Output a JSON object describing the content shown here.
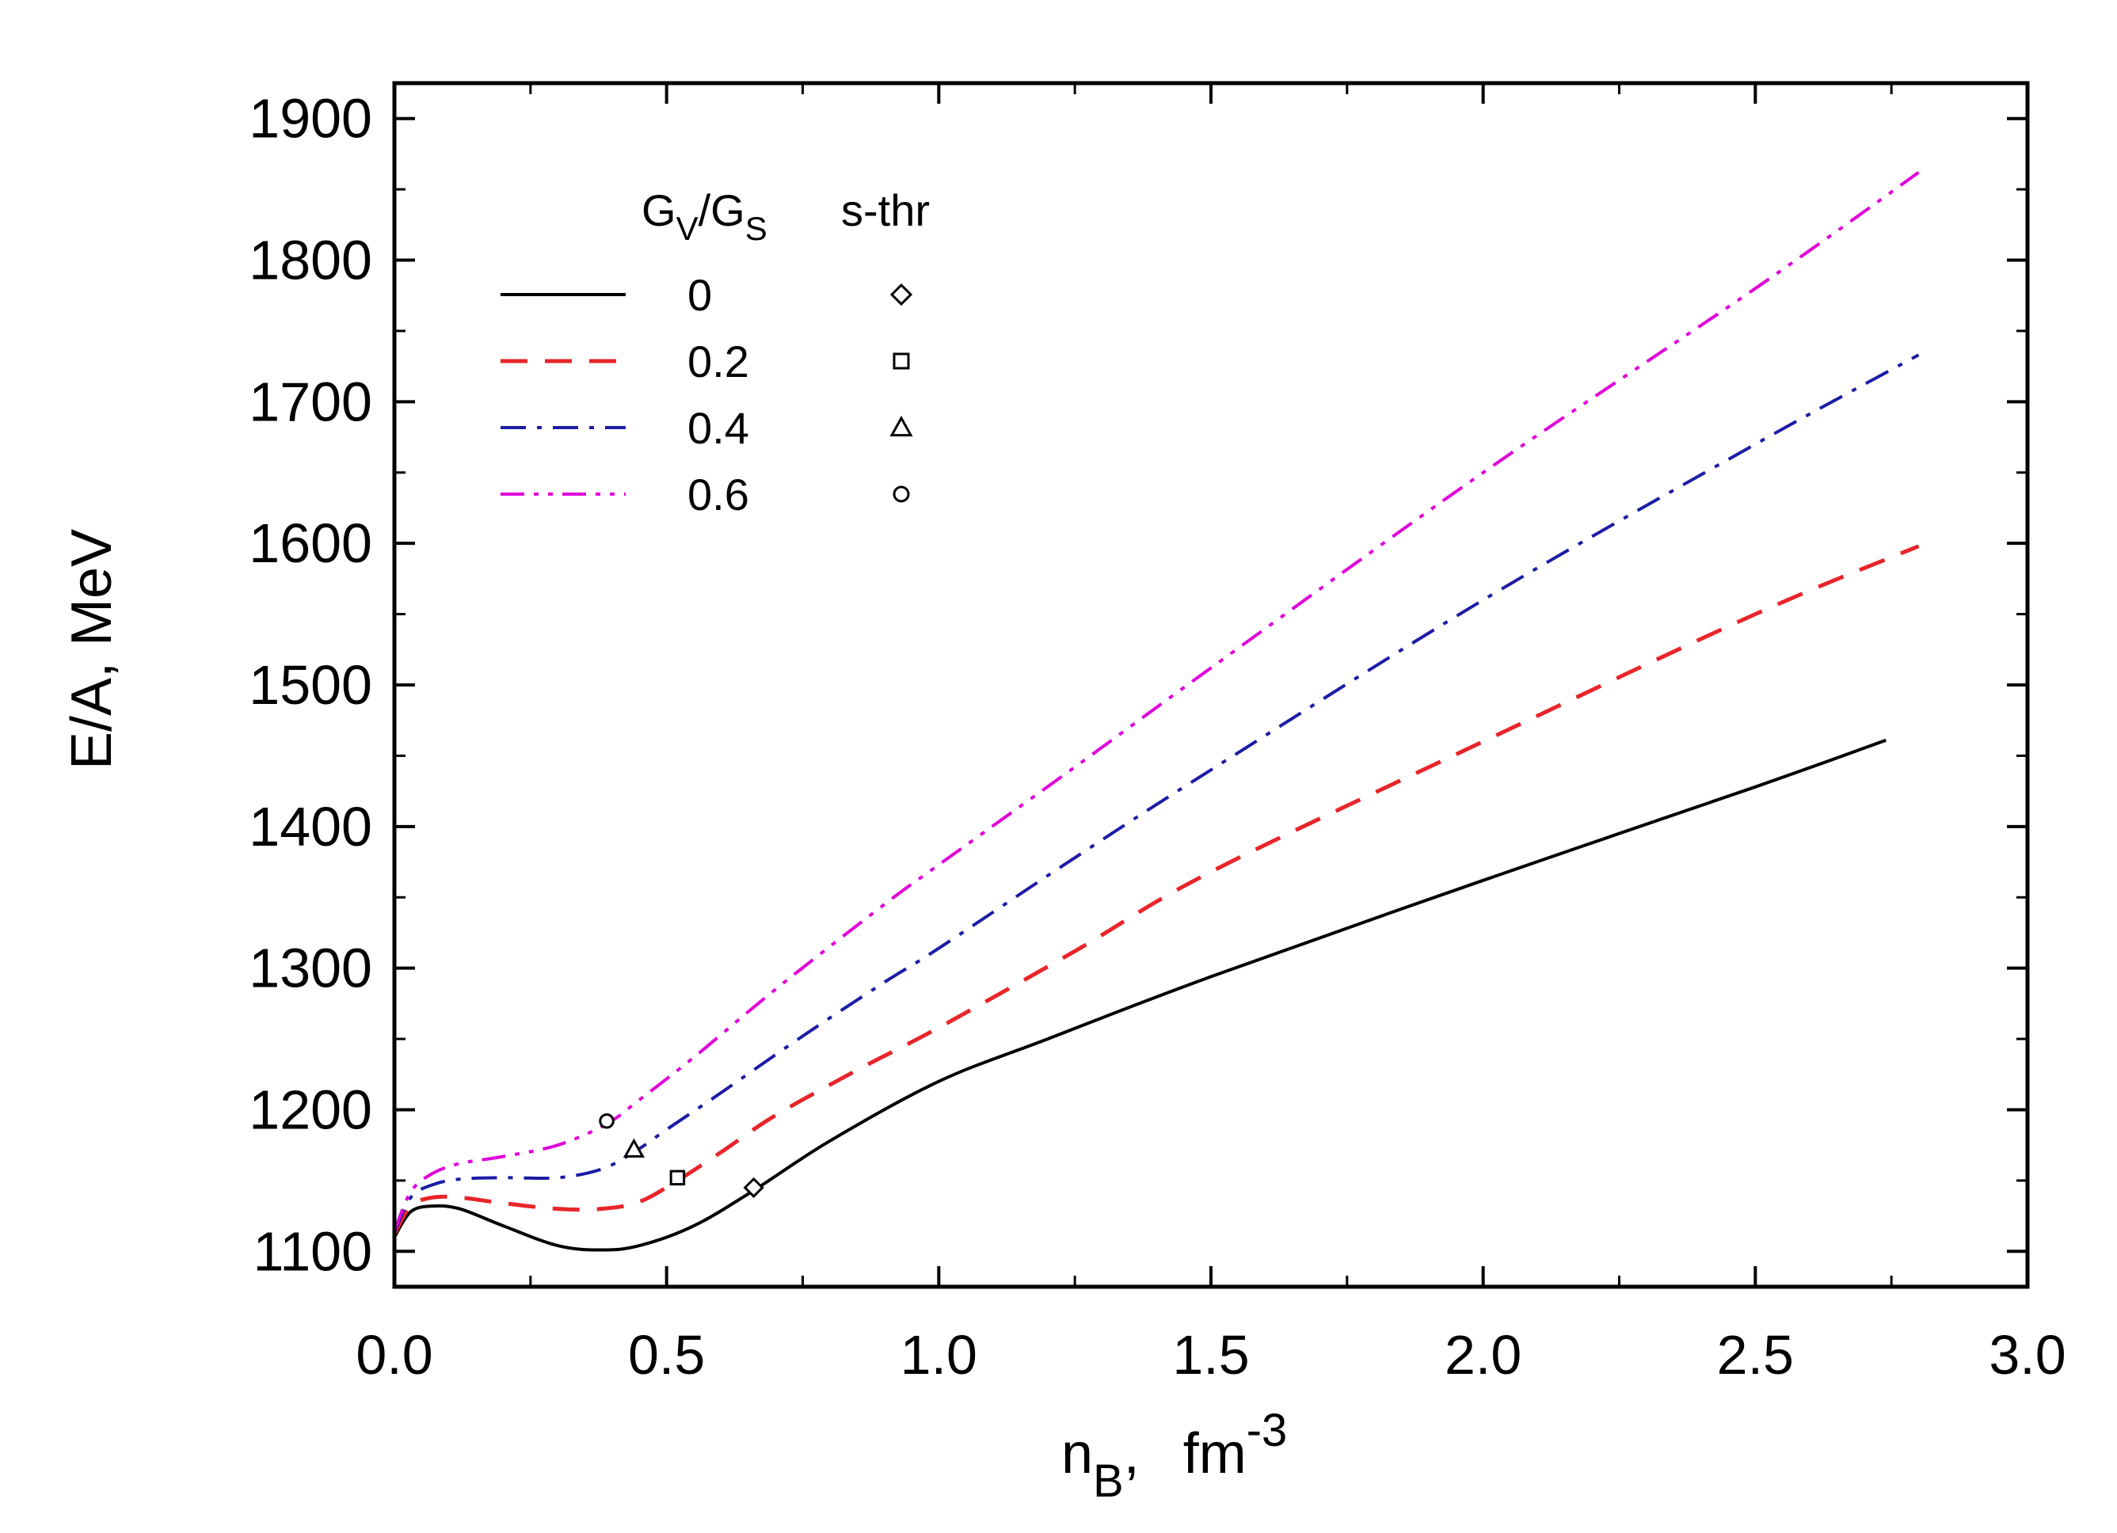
{
  "chart_data": {
    "type": "line",
    "title": "",
    "xlabel": {
      "main": "n",
      "sub": "B",
      "sep": ",",
      "unit": "fm",
      "sup": "-3"
    },
    "ylabel": "E/A,   MeV",
    "xlim": [
      0.0,
      3.0
    ],
    "ylim": [
      1075,
      1925
    ],
    "xticks": [
      "0.0",
      "0.5",
      "1.0",
      "1.5",
      "2.0",
      "2.5",
      "3.0"
    ],
    "yticks": [
      "1100",
      "1200",
      "1300",
      "1400",
      "1500",
      "1600",
      "1700",
      "1800",
      "1900"
    ],
    "legend": {
      "position": "top-left",
      "header_ratio": {
        "g1": "G",
        "s1": "V",
        "slash": "/",
        "g2": "G",
        "s2": "S"
      },
      "header_threshold": "s-thr"
    },
    "series": [
      {
        "name": "0",
        "color": "#000000",
        "dash": "solid",
        "marker": "diamond",
        "threshold": [
          0.66,
          1145
        ],
        "x": [
          0.0,
          0.03,
          0.07,
          0.12,
          0.2,
          0.3,
          0.38,
          0.45,
          0.55,
          0.66,
          0.8,
          1.0,
          1.2,
          1.5,
          2.0,
          2.5,
          2.74
        ],
        "y": [
          1110,
          1128,
          1132,
          1130,
          1118,
          1104,
          1101,
          1104,
          1118,
          1143,
          1178,
          1220,
          1250,
          1294,
          1362,
          1428,
          1461
        ]
      },
      {
        "name": "0.2",
        "color": "#e8252a",
        "dash": "dashed",
        "marker": "square",
        "threshold": [
          0.52,
          1152
        ],
        "x": [
          0.0,
          0.03,
          0.07,
          0.12,
          0.2,
          0.3,
          0.38,
          0.45,
          0.52,
          0.6,
          0.7,
          0.85,
          1.0,
          1.25,
          1.5,
          2.0,
          2.5,
          2.8
        ],
        "y": [
          1112,
          1132,
          1138,
          1138,
          1134,
          1130,
          1130,
          1135,
          1150,
          1170,
          1196,
          1228,
          1258,
          1312,
          1368,
          1460,
          1550,
          1598
        ]
      },
      {
        "name": "0.4",
        "color": "#1c1ca6",
        "dash": "dashdot",
        "marker": "triangle",
        "threshold": [
          0.44,
          1172
        ],
        "x": [
          0.0,
          0.03,
          0.07,
          0.12,
          0.2,
          0.3,
          0.38,
          0.44,
          0.5,
          0.6,
          0.75,
          0.9,
          1.0,
          1.25,
          1.5,
          2.0,
          2.5,
          2.8
        ],
        "y": [
          1113,
          1138,
          1147,
          1151,
          1152,
          1152,
          1158,
          1170,
          1186,
          1212,
          1252,
          1290,
          1314,
          1378,
          1440,
          1560,
          1670,
          1733
        ]
      },
      {
        "name": "0.6",
        "color": "#e100d9",
        "dash": "dashdotdot",
        "marker": "circle",
        "threshold": [
          0.39,
          1192
        ],
        "x": [
          0.0,
          0.03,
          0.07,
          0.12,
          0.2,
          0.3,
          0.39,
          0.45,
          0.55,
          0.7,
          0.9,
          1.0,
          1.25,
          1.5,
          2.0,
          2.5,
          2.8
        ],
        "y": [
          1114,
          1142,
          1155,
          1162,
          1167,
          1175,
          1190,
          1207,
          1237,
          1285,
          1345,
          1373,
          1442,
          1512,
          1650,
          1780,
          1862
        ]
      }
    ]
  }
}
